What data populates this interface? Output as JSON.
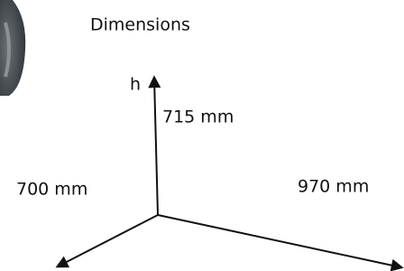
{
  "title": "Dimensions",
  "axes": {
    "height_label": "h",
    "height": "715 mm",
    "depth": "700 mm",
    "width": "970 mm"
  }
}
